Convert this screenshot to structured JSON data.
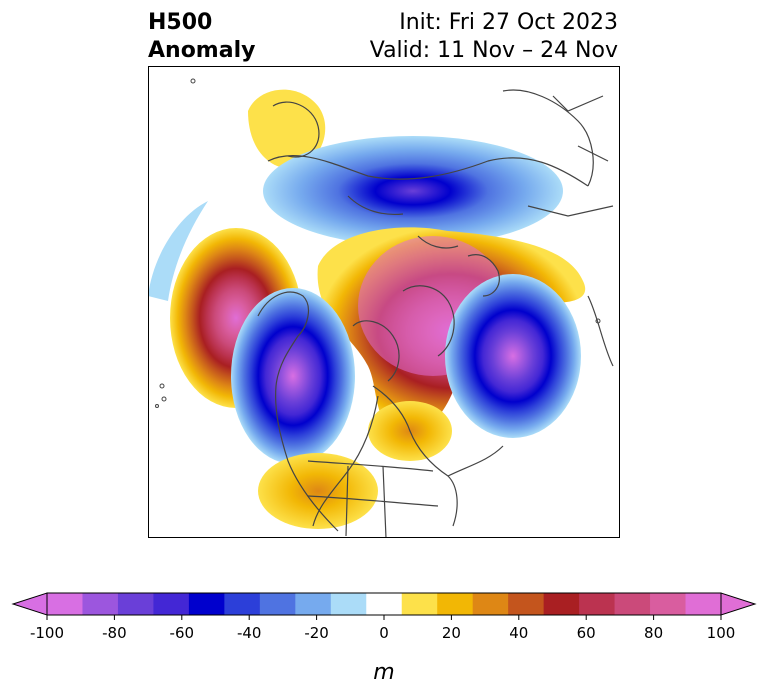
{
  "header": {
    "variable": "H500",
    "subtitle": "Anomaly",
    "init": "Init: Fri 27 Oct 2023",
    "valid": "Valid: 11 Nov – 24 Nov"
  },
  "colorbar": {
    "unit": "m",
    "ticks": [
      "-100",
      "-80",
      "-60",
      "-40",
      "-20",
      "0",
      "20",
      "40",
      "60",
      "80",
      "100"
    ],
    "colors": [
      "#d86fe3",
      "#9c56de",
      "#6a3fd8",
      "#4327d5",
      "#0000cd",
      "#2c3fd9",
      "#4f73e1",
      "#76aaee",
      "#abdcf8",
      "#ffffff",
      "#fde14a",
      "#f2b705",
      "#de8715",
      "#c4551d",
      "#a91f22",
      "#bb3350",
      "#cb4a7a",
      "#d95d9f",
      "#e06ed6"
    ]
  },
  "map": {
    "region": "North America / Arctic polar stereographic",
    "features": [
      {
        "name": "positive-anomaly-arctic-canada",
        "sign": "positive",
        "peak": 100
      },
      {
        "name": "positive-anomaly-north-pacific",
        "sign": "positive",
        "peak": 100
      },
      {
        "name": "negative-anomaly-gulf-of-alaska",
        "sign": "negative",
        "peak": -100
      },
      {
        "name": "negative-anomaly-north-atlantic",
        "sign": "negative",
        "peak": -100
      },
      {
        "name": "negative-anomaly-siberia",
        "sign": "negative",
        "peak": -80
      },
      {
        "name": "positive-anomaly-southwest-us",
        "sign": "positive",
        "peak": 40
      }
    ]
  }
}
